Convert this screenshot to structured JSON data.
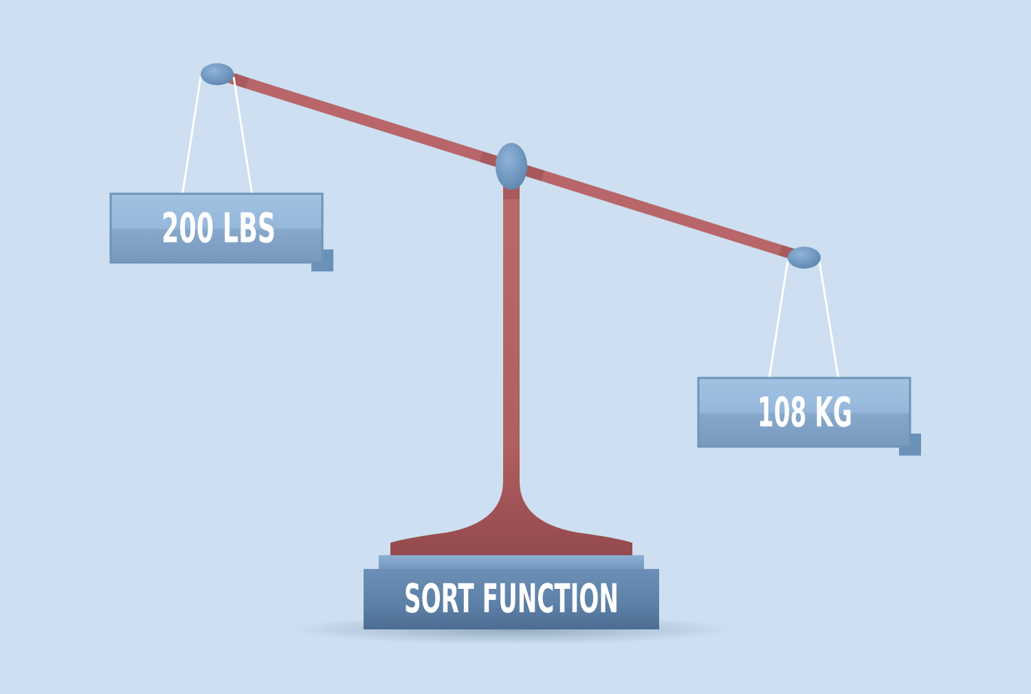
{
  "left_weight": {
    "label": "200 LBS"
  },
  "right_weight": {
    "label": "108 KG"
  },
  "base": {
    "label": "SORT FUNCTION"
  },
  "colors": {
    "background": "#cddff0",
    "beam": "#b86669",
    "beam_dark": "#9a4f53",
    "knob": "#6f98c0",
    "weight_box": "#8fb1d2",
    "weight_border": "#6f93b8",
    "base_box": "#5b7fa4",
    "string": "#ffffff"
  }
}
